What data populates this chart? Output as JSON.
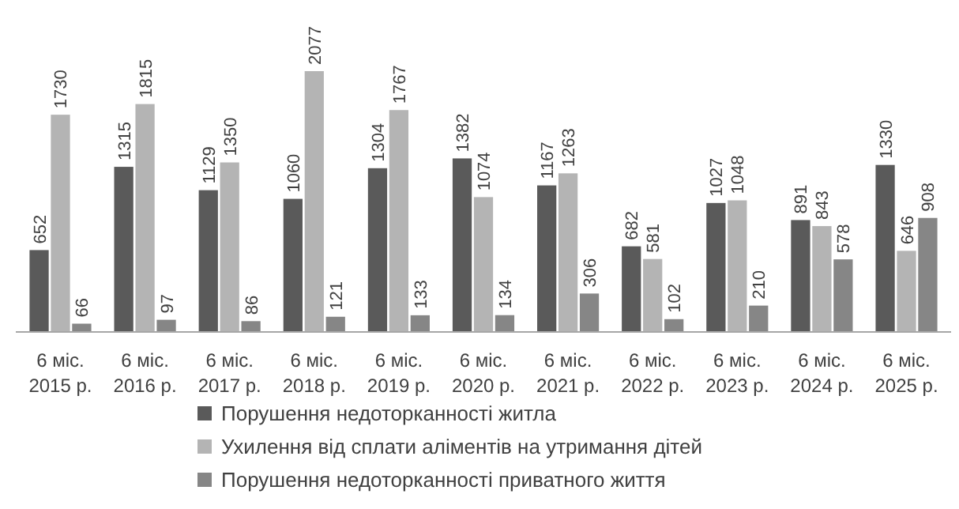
{
  "chart_data": {
    "type": "bar",
    "categories": [
      "6 міс.\n2015 р.",
      "6 міс.\n2016 р.",
      "6 міс.\n2017 р.",
      "6 міс.\n2018 р.",
      "6 міс.\n2019 р.",
      "6 міс.\n2020 р.",
      "6 міс.\n2021 р.",
      "6 міс.\n2022 р.",
      "6 міс.\n2023 р.",
      "6 міс.\n2024 р.",
      "6 міс.\n2025 р."
    ],
    "series": [
      {
        "name": "Порушення недоторканності житла",
        "color": "#5a5a5a",
        "values": [
          652,
          1315,
          1129,
          1060,
          1304,
          1382,
          1167,
          682,
          1027,
          891,
          1330
        ]
      },
      {
        "name": "Ухилення від сплати аліментів на утримання дітей",
        "color": "#b4b4b4",
        "values": [
          1730,
          1815,
          1350,
          2077,
          1767,
          1074,
          1263,
          581,
          1048,
          843,
          646
        ]
      },
      {
        "name": "Порушення недоторканності приватного життя",
        "color": "#868686",
        "values": [
          66,
          97,
          86,
          121,
          133,
          134,
          306,
          102,
          210,
          578,
          908
        ]
      }
    ],
    "data_labels": true,
    "legend": "bottom"
  }
}
